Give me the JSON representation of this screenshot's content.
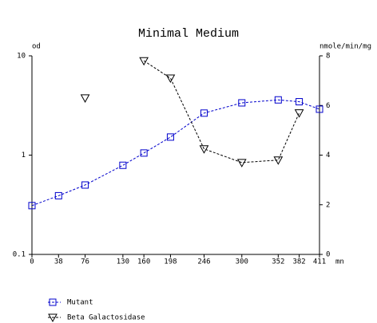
{
  "chart_data": {
    "type": "line",
    "title": "Minimal Medium",
    "y_label": "od",
    "y2_label": "nmole/min/mg",
    "x_label": "mn",
    "x": [
      0,
      38,
      76,
      130,
      160,
      198,
      246,
      300,
      352,
      382,
      411
    ],
    "xlim": [
      0,
      411
    ],
    "xticks": [
      0,
      38,
      76,
      130,
      160,
      198,
      246,
      300,
      352,
      382,
      411
    ],
    "ylim": [
      0.1,
      10
    ],
    "yticks": [
      0.1,
      1,
      10
    ],
    "yscale": "log",
    "y2lim": [
      0,
      8
    ],
    "y2ticks": [
      0,
      2,
      4,
      6,
      8
    ],
    "legend": "bottom-left",
    "series": [
      {
        "name": "Mutant",
        "color": "#0000cc",
        "marker": "square",
        "values": [
          0.31,
          0.39,
          0.5,
          0.79,
          1.05,
          1.52,
          2.65,
          3.36,
          3.6,
          3.45,
          2.9
        ]
      },
      {
        "name": "Beta Galactosidase",
        "color": "#000000",
        "marker": "triangle-down",
        "axis": "y2",
        "values": [
          null,
          null,
          6.3,
          null,
          7.8,
          7.1,
          4.25,
          3.7,
          3.8,
          5.7,
          null
        ]
      }
    ]
  }
}
